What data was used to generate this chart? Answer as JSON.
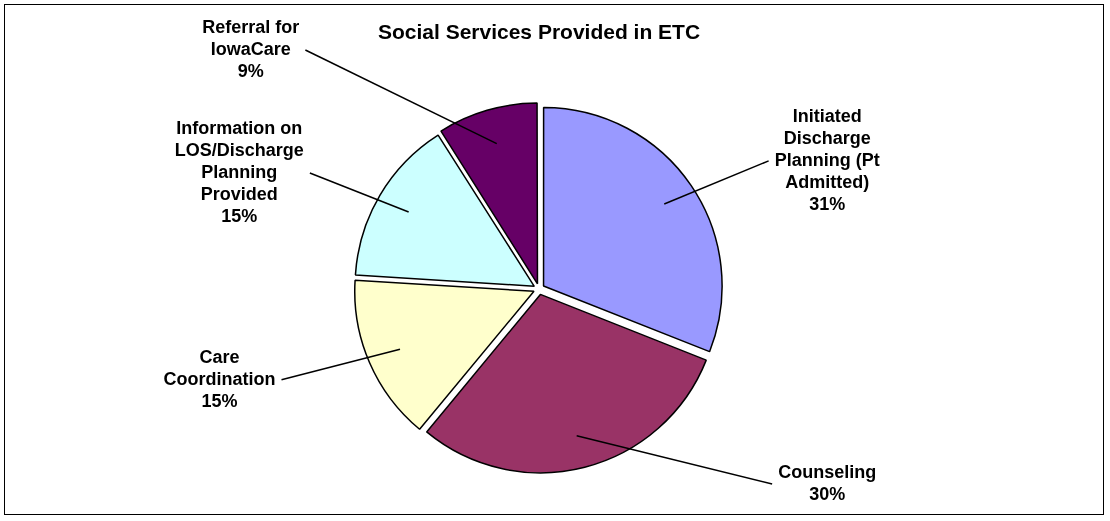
{
  "chart_data": {
    "type": "pie",
    "title": "Social Services Provided in ETC",
    "categories": [
      "Initiated Discharge Planning (Pt Admitted)",
      "Counseling",
      "Care Coordination",
      "Information on LOS/Discharge Planning Provided",
      "Referral for IowaCare"
    ],
    "values": [
      31,
      30,
      15,
      15,
      9
    ],
    "value_labels": [
      "31%",
      "30%",
      "15%",
      "15%",
      "9%"
    ],
    "colors": [
      "#9999ff",
      "#993366",
      "#ffffcc",
      "#ccffff",
      "#660066"
    ],
    "legend": false
  }
}
